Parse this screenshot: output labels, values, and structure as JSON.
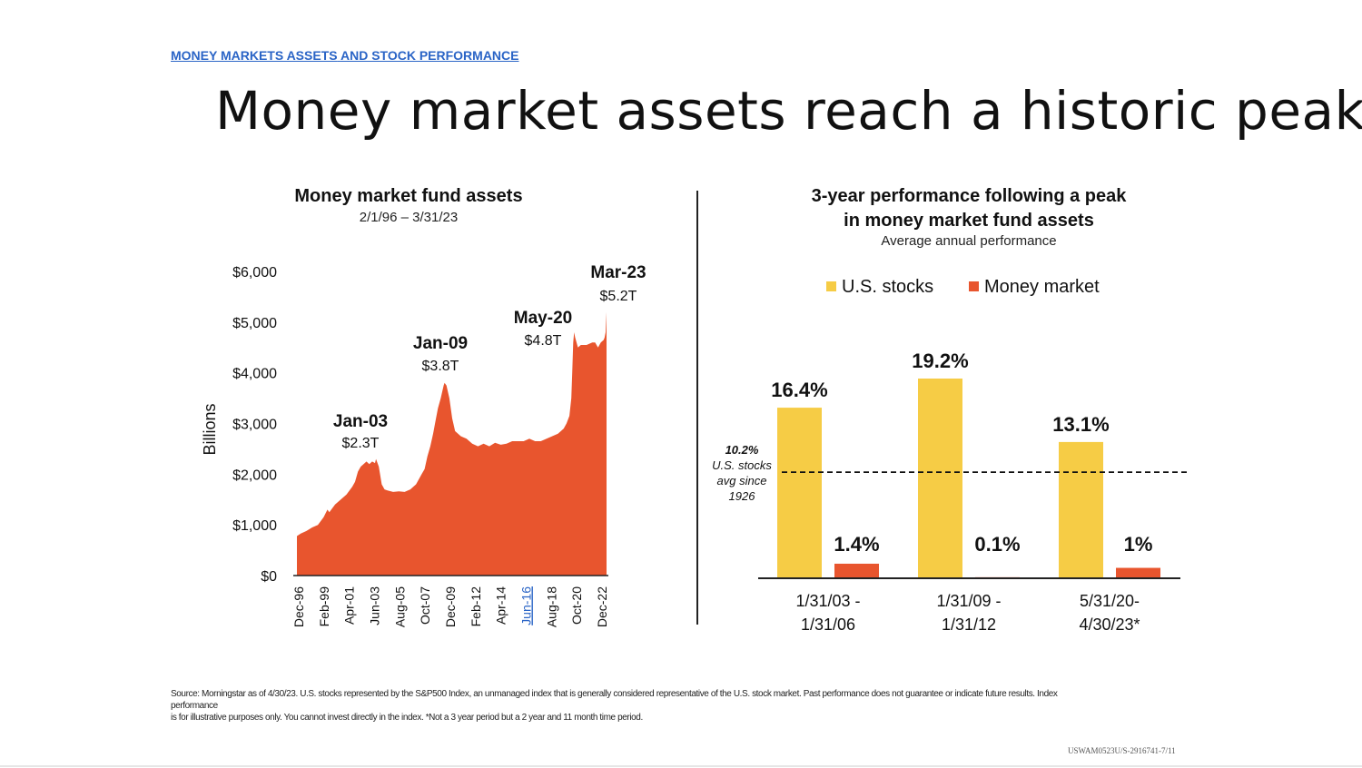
{
  "header": {
    "link_part1": "MONEY MARKETS ASSETS",
    "link_part2": "AND STOCK PERFORMANCE"
  },
  "title": "Money market assets reach a historic peak",
  "footnote": {
    "line1": "Source: Morningstar as of 4/30/23. U.S. stocks represented by the S&P500  Index, an unmanaged index that is generally considered representative of the U.S. stock market. Past performance does not guarantee or indicate future results. Index",
    "line2": "performance",
    "line3": "is for illustrative purposes only. You cannot invest directly in the index. *Not a 3 year period but a 2 year and 11 month time period."
  },
  "doc_id": "USWAM0523U/S-2916741-7/11",
  "colors": {
    "area": "#e8552e",
    "stocks": "#f6cc45",
    "money_market": "#e8552e",
    "link": "#2a64c6"
  },
  "chart_data": [
    {
      "type": "area",
      "title": "Money market fund assets",
      "subtitle": "2/1/96 – 3/31/23",
      "ylabel": "Billions",
      "ylim": [
        0,
        6000
      ],
      "y_ticks": [
        "$6,000",
        "$5,000",
        "$4,000",
        "$3,000",
        "$2,000",
        "$1,000",
        "$0"
      ],
      "x_ticks": [
        "Dec-96",
        "Feb-99",
        "Apr-01",
        "Jun-03",
        "Aug-05",
        "Oct-07",
        "Dec-09",
        "Feb-12",
        "Apr-14",
        "Jun-16",
        "Aug-18",
        "Oct-20",
        "Dec-22"
      ],
      "x_range": [
        "1996-02",
        "2023-03"
      ],
      "series": [
        {
          "x": [
            "1996-02",
            "1996-06",
            "1996-12",
            "1997-06",
            "1997-12",
            "1998-06",
            "1998-10",
            "1998-12",
            "1999-06",
            "1999-12",
            "2000-06",
            "2000-12",
            "2001-03",
            "2001-06",
            "2001-09",
            "2001-12",
            "2002-03",
            "2002-06",
            "2002-09",
            "2002-12",
            "2003-01",
            "2003-04",
            "2003-07",
            "2003-10",
            "2004-01",
            "2004-07",
            "2005-01",
            "2005-07",
            "2006-01",
            "2006-07",
            "2007-01",
            "2007-04",
            "2007-07",
            "2007-10",
            "2008-01",
            "2008-03",
            "2008-06",
            "2008-09",
            "2008-12",
            "2009-01",
            "2009-03",
            "2009-06",
            "2009-09",
            "2009-12",
            "2010-06",
            "2010-12",
            "2011-06",
            "2011-12",
            "2012-06",
            "2012-12",
            "2013-06",
            "2013-12",
            "2014-06",
            "2014-12",
            "2015-06",
            "2015-12",
            "2016-06",
            "2016-12",
            "2017-06",
            "2017-12",
            "2018-06",
            "2018-12",
            "2019-06",
            "2019-09",
            "2019-12",
            "2020-02",
            "2020-03",
            "2020-04",
            "2020-05",
            "2020-06",
            "2020-09",
            "2020-12",
            "2021-06",
            "2021-12",
            "2022-03",
            "2022-06",
            "2022-09",
            "2022-12",
            "2023-01",
            "2023-02",
            "2023-03"
          ],
          "y": [
            780,
            830,
            880,
            950,
            1000,
            1150,
            1300,
            1250,
            1400,
            1500,
            1600,
            1750,
            1850,
            2050,
            2150,
            2200,
            2250,
            2200,
            2250,
            2220,
            2300,
            2150,
            1800,
            1700,
            1680,
            1650,
            1660,
            1650,
            1700,
            1800,
            2000,
            2100,
            2350,
            2550,
            2800,
            3000,
            3300,
            3500,
            3750,
            3800,
            3750,
            3500,
            3100,
            2850,
            2750,
            2700,
            2600,
            2550,
            2600,
            2550,
            2620,
            2580,
            2600,
            2650,
            2650,
            2650,
            2700,
            2650,
            2650,
            2700,
            2750,
            2800,
            2900,
            3000,
            3150,
            3500,
            4000,
            4600,
            4800,
            4700,
            4500,
            4550,
            4550,
            4600,
            4600,
            4500,
            4600,
            4650,
            4700,
            4800,
            5200
          ]
        }
      ],
      "annotations": [
        {
          "label": "Jan-03",
          "value": "$2.3T"
        },
        {
          "label": "Jan-09",
          "value": "$3.8T"
        },
        {
          "label": "May-20",
          "value": "$4.8T"
        },
        {
          "label": "Mar-23",
          "value": "$5.2T"
        }
      ]
    },
    {
      "type": "bar",
      "title": "3-year performance following a peak in money market fund assets",
      "title_line1": "3-year performance following a peak",
      "title_line2": "in money market fund assets",
      "subtitle": "Average annual performance",
      "categories": [
        [
          "1/31/03 -",
          "1/31/06"
        ],
        [
          "1/31/09 -",
          "1/31/12"
        ],
        [
          "5/31/20-",
          "4/30/23*"
        ]
      ],
      "series": [
        {
          "name": "U.S. stocks",
          "values": [
            16.4,
            19.2,
            13.1
          ],
          "labels": [
            "16.4%",
            "19.2%",
            "13.1%"
          ]
        },
        {
          "name": "Money market",
          "values": [
            1.4,
            0.1,
            1.0
          ],
          "labels": [
            "1.4%",
            "0.1%",
            "1%"
          ]
        }
      ],
      "ylim": [
        0,
        21
      ],
      "reference_line": {
        "value": 10.2,
        "label_lines": [
          "10.2%",
          "U.S. stocks",
          "avg since",
          "1926"
        ]
      },
      "legend": "top"
    }
  ]
}
